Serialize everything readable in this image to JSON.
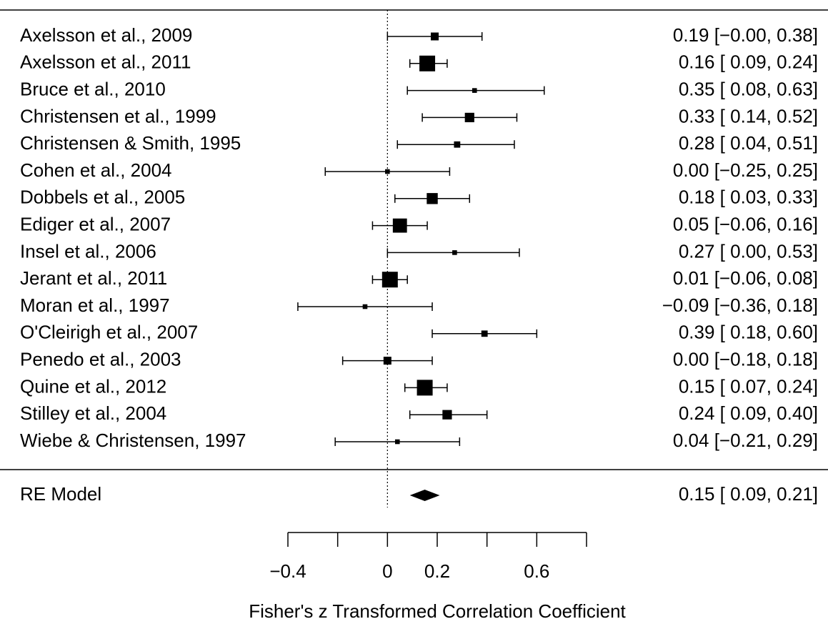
{
  "chart_data": {
    "type": "forest",
    "xlabel": "Fisher's z Transformed Correlation Coefficient",
    "categories": [
      "Axelsson et al., 2009",
      "Axelsson et al., 2011",
      "Bruce et al., 2010",
      "Christensen et al., 1999",
      "Christensen & Smith, 1995",
      "Cohen et al., 2004",
      "Dobbels et al., 2005",
      "Ediger et al., 2007",
      "Insel et al., 2006",
      "Jerant et al., 2011",
      "Moran et al., 1997",
      "O'Cleirigh et al., 2007",
      "Penedo et al., 2003",
      "Quine et al., 2012",
      "Stilley et al., 2004",
      "Wiebe & Christensen, 1997"
    ],
    "values": [
      0.19,
      0.16,
      0.35,
      0.33,
      0.28,
      0.0,
      0.18,
      0.05,
      0.27,
      0.01,
      -0.09,
      0.39,
      0.0,
      0.15,
      0.24,
      0.04
    ],
    "lower": [
      0.0,
      0.09,
      0.08,
      0.14,
      0.04,
      -0.25,
      0.03,
      -0.06,
      0.0,
      -0.06,
      -0.36,
      0.18,
      -0.18,
      0.07,
      0.09,
      -0.21
    ],
    "upper": [
      0.38,
      0.24,
      0.63,
      0.52,
      0.51,
      0.25,
      0.33,
      0.16,
      0.53,
      0.08,
      0.18,
      0.6,
      0.18,
      0.24,
      0.4,
      0.29
    ],
    "weights": [
      5,
      10,
      3,
      6,
      4,
      3,
      7,
      9,
      3,
      10,
      3,
      4,
      5,
      10,
      6,
      3
    ],
    "value_labels": [
      "0.19 [−0.00, 0.38]",
      "0.16 [ 0.09, 0.24]",
      "0.35 [ 0.08, 0.63]",
      "0.33 [ 0.14, 0.52]",
      "0.28 [ 0.04, 0.51]",
      "0.00 [−0.25, 0.25]",
      "0.18 [ 0.03, 0.33]",
      "0.05 [−0.06, 0.16]",
      "0.27 [ 0.00, 0.53]",
      "0.01 [−0.06, 0.08]",
      "−0.09 [−0.36, 0.18]",
      "0.39 [ 0.18, 0.60]",
      "0.00 [−0.18, 0.18]",
      "0.15 [ 0.07, 0.24]",
      "0.24 [ 0.09, 0.40]",
      "0.04 [−0.21, 0.29]"
    ],
    "summary": {
      "label": "RE Model",
      "value": 0.15,
      "lower": 0.09,
      "upper": 0.21,
      "value_label": "0.15 [ 0.09, 0.21]"
    },
    "xlim": [
      -0.4,
      0.8
    ],
    "xticks": [
      {
        "value": -0.4,
        "label": "−0.4"
      },
      {
        "value": -0.2,
        "label": null
      },
      0,
      0.2,
      {
        "value": 0.4,
        "label": null
      },
      0.6,
      {
        "value": 0.8,
        "label": null
      }
    ],
    "reference_line": 0,
    "color": "#000000"
  }
}
